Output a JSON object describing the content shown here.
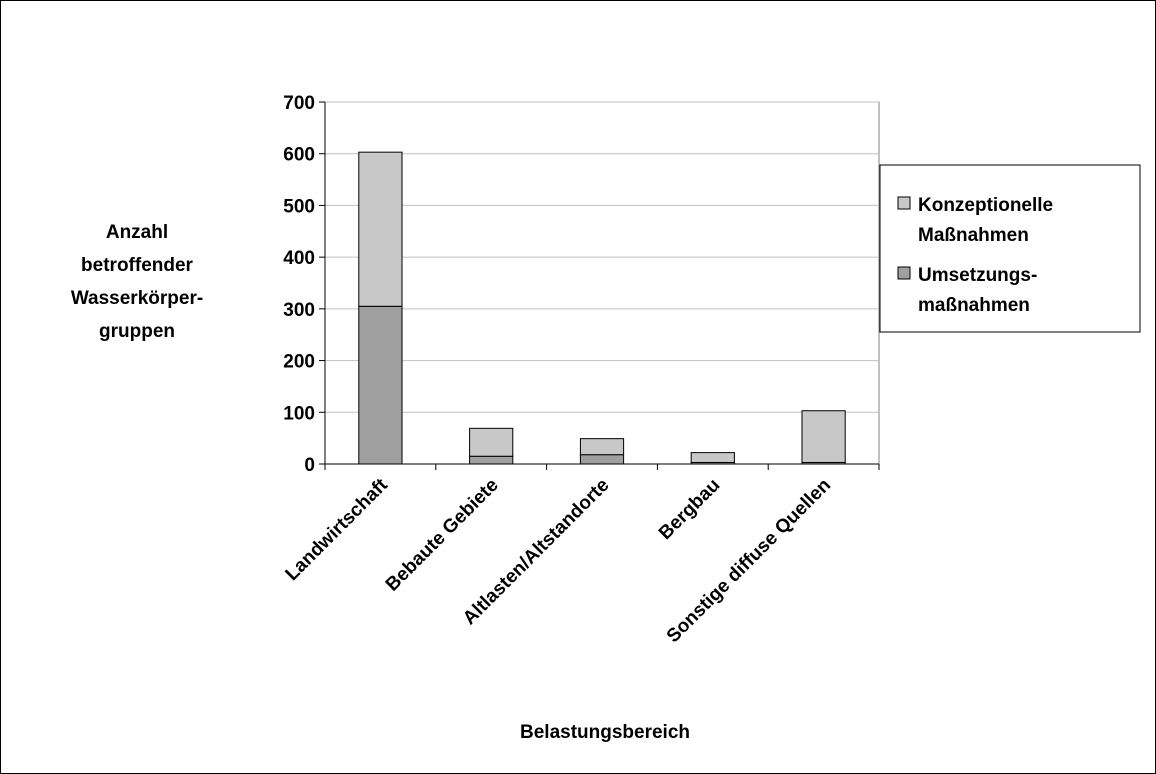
{
  "chart_data": {
    "type": "bar",
    "stacked": true,
    "categories": [
      "Landwirtschaft",
      "Bebaute Gebiete",
      "Altlasten/Altstandorte",
      "Bergbau",
      "Sonstige diffuse Quellen"
    ],
    "series": [
      {
        "name": "Umsetzungs-maßnahmen",
        "legend_lines": [
          "Umsetzungs-",
          "maßnahmen"
        ],
        "values": [
          305,
          15,
          18,
          3,
          3
        ],
        "color": "#a0a0a0"
      },
      {
        "name": "Konzeptionelle Maßnahmen",
        "legend_lines": [
          "Konzeptionelle",
          "Maßnahmen"
        ],
        "values": [
          298,
          54,
          31,
          19,
          100
        ],
        "color": "#c8c8c8"
      }
    ],
    "xlabel": "Belastungsbereich",
    "ylabel_lines": [
      "Anzahl",
      "betroffender",
      "Wasserkörper-",
      "gruppen"
    ],
    "ylim": [
      0,
      700
    ],
    "yticks": [
      0,
      100,
      200,
      300,
      400,
      500,
      600,
      700
    ],
    "grid": true,
    "legend_position": "right",
    "plot_background": "#ffffff",
    "grid_color": "#c0c0c0"
  }
}
